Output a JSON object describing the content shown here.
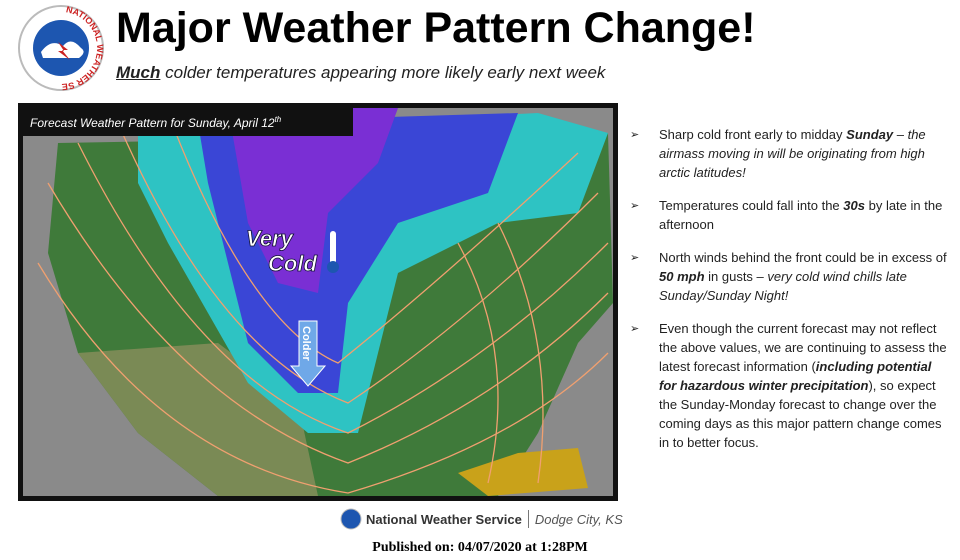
{
  "logo_text": "NATIONAL WEATHER SERVICE",
  "header": {
    "title": "Major Weather Pattern Change!",
    "subtitle_emphasis": "Much",
    "subtitle": " colder temperatures appearing more likely early next week"
  },
  "map": {
    "caption": "Forecast Weather Pattern for Sunday, April 12",
    "caption_suffix": "th",
    "label_very": "Very",
    "label_cold": "Cold",
    "label_colder": "Colder"
  },
  "bullets": [
    [
      {
        "plain": "Sharp cold front early to midday "
      },
      {
        "bold_italic": "Sunday"
      },
      {
        "plain": " – "
      },
      {
        "italic": "the airmass moving in will be originating from high arctic latitudes!"
      }
    ],
    [
      {
        "plain": "Temperatures could fall into the "
      },
      {
        "bold_italic": "30s"
      },
      {
        "plain": " by late in the afternoon"
      }
    ],
    [
      {
        "plain": "North winds behind the front could be in excess of "
      },
      {
        "bold_italic": "50 mph"
      },
      {
        "plain": " in gusts – "
      },
      {
        "italic": "very cold wind chills late Sunday/Sunday Night!"
      }
    ],
    [
      {
        "plain": "Even though the current forecast may not reflect the above values, we are continuing to assess the latest forecast information ("
      },
      {
        "bold_italic": "including potential for hazardous winter precipitation"
      },
      {
        "plain": "), so expect the Sunday-Monday forecast to change over the coming days as this major pattern change comes in to better focus."
      }
    ]
  ],
  "footer": {
    "agency": "National Weather Service",
    "office": "Dodge City, KS",
    "published": "Published on: 04/07/2020 at 1:28PM"
  }
}
